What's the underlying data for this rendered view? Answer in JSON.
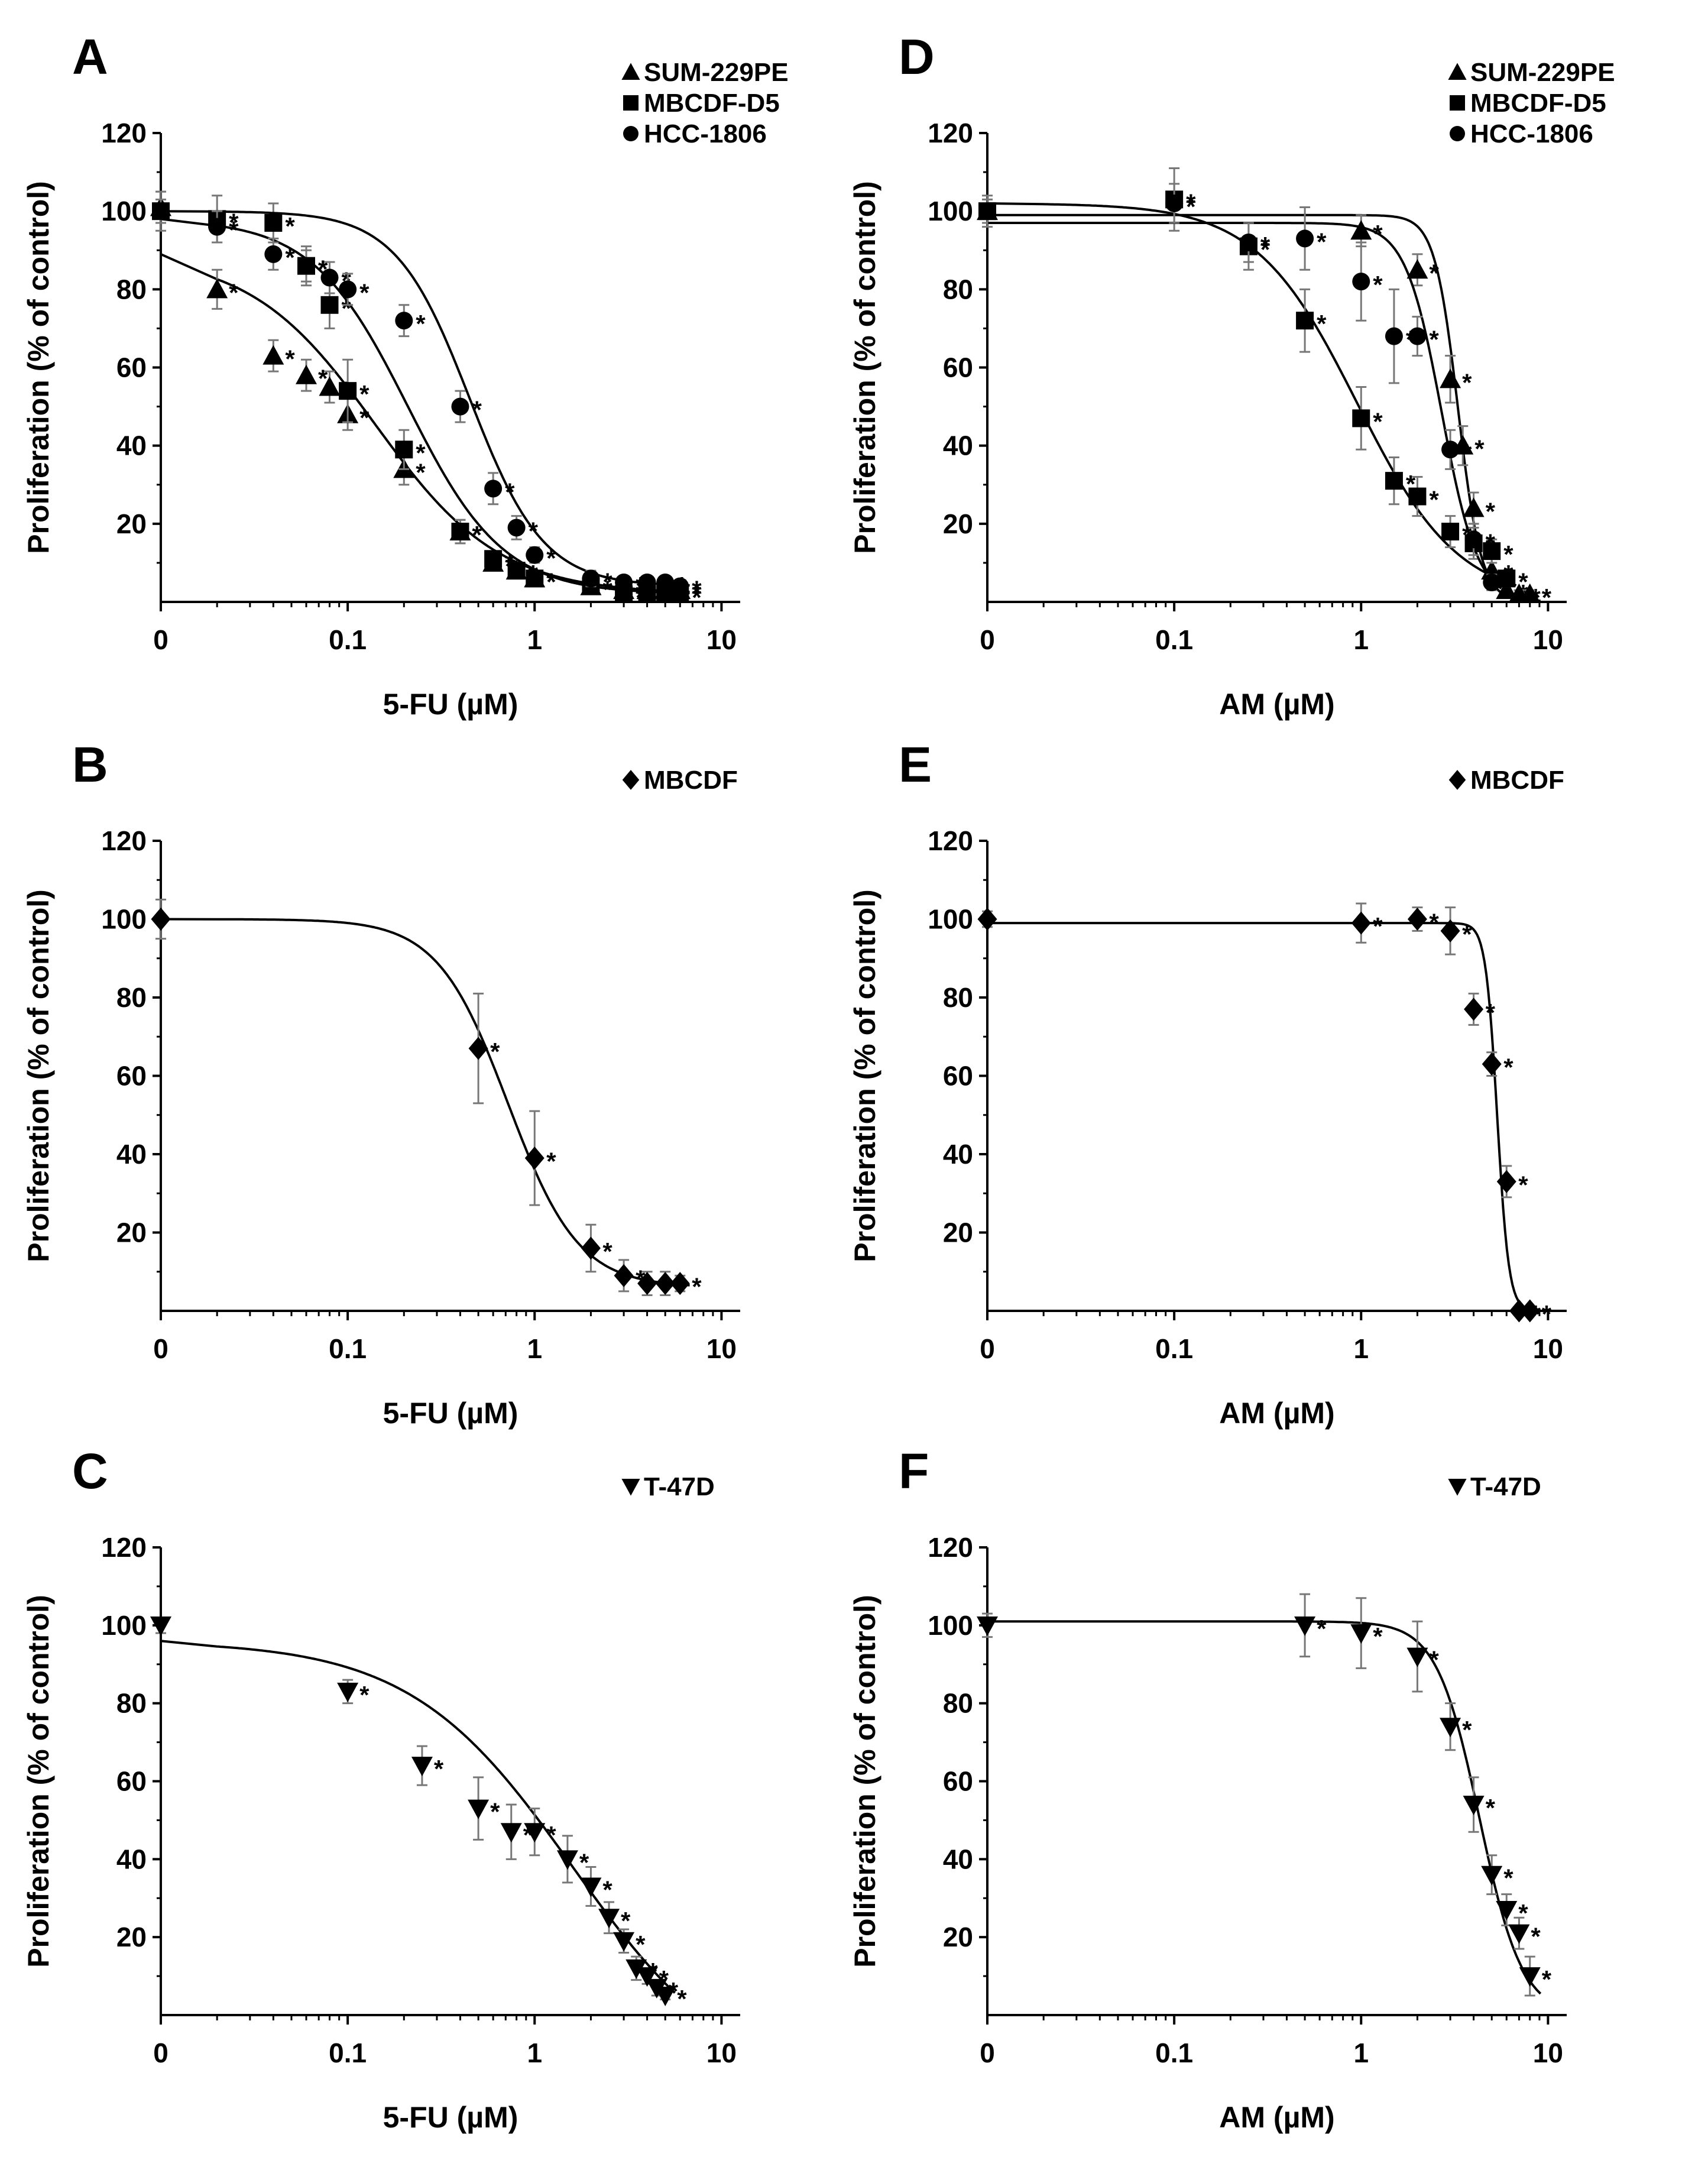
{
  "figure": {
    "panel_letters": [
      "A",
      "B",
      "C",
      "D",
      "E",
      "F"
    ]
  },
  "chart_data": [
    {
      "panel": "A",
      "type": "scatter",
      "xlabel": "5-FU (µM)",
      "ylabel": "Proliferation (% of control)",
      "x_scale": "log",
      "x_ticks": [
        "0",
        "0.1",
        "1",
        "10"
      ],
      "y_ticks": [
        "20",
        "40",
        "60",
        "80",
        "100",
        "120"
      ],
      "ylim": [
        0,
        120
      ],
      "legend": [
        "SUM-229PE",
        "MBCDF-D5",
        "HCC-1806"
      ],
      "series": [
        {
          "name": "SUM-229PE",
          "marker": "triangle-up",
          "x": [
            0,
            0.02,
            0.04,
            0.06,
            0.08,
            0.1,
            0.2,
            0.4,
            0.6,
            0.8,
            1,
            2,
            3,
            4,
            5,
            6
          ],
          "y": [
            101,
            80,
            63,
            58,
            55,
            48,
            34,
            18,
            10,
            8,
            6,
            4,
            3,
            3,
            3,
            3
          ],
          "err": [
            4,
            5,
            4,
            4,
            4,
            4,
            4,
            3,
            2,
            2,
            2,
            1,
            1,
            1,
            1,
            1
          ],
          "fit": {
            "top": 89,
            "bottom": 2,
            "ec50": 0.14,
            "hill": 1.3
          }
        },
        {
          "name": "MBCDF-D5",
          "marker": "square",
          "x": [
            0,
            0.02,
            0.04,
            0.06,
            0.08,
            0.1,
            0.2,
            0.4,
            0.6,
            0.8,
            1,
            2,
            3,
            4,
            5,
            6
          ],
          "y": [
            100,
            98,
            97,
            86,
            76,
            54,
            39,
            18,
            11,
            8,
            6,
            4,
            2,
            2,
            2,
            2
          ],
          "err": [
            5,
            6,
            5,
            5,
            6,
            8,
            5,
            3,
            2,
            2,
            2,
            1,
            1,
            1,
            1,
            1
          ],
          "fit": {
            "top": 98,
            "bottom": 2,
            "ec50": 0.21,
            "hill": 1.7
          }
        },
        {
          "name": "HCC-1806",
          "marker": "circle",
          "x": [
            0,
            0.02,
            0.04,
            0.06,
            0.08,
            0.1,
            0.2,
            0.4,
            0.6,
            0.8,
            1,
            2,
            3,
            4,
            5,
            6
          ],
          "y": [
            100,
            96,
            89,
            86,
            83,
            80,
            72,
            50,
            29,
            19,
            12,
            6,
            5,
            5,
            5,
            4
          ],
          "err": [
            3,
            4,
            4,
            4,
            4,
            4,
            4,
            4,
            4,
            3,
            2,
            2,
            1,
            1,
            1,
            1
          ],
          "fit": {
            "top": 100,
            "bottom": 4,
            "ec50": 0.45,
            "hill": 2.2
          }
        }
      ],
      "significance": [
        "*"
      ]
    },
    {
      "panel": "B",
      "type": "scatter",
      "xlabel": "5-FU (µM)",
      "ylabel": "Proliferation (% of control)",
      "x_scale": "log",
      "x_ticks": [
        "0",
        "0.1",
        "1",
        "10"
      ],
      "y_ticks": [
        "20",
        "40",
        "60",
        "80",
        "100",
        "120"
      ],
      "ylim": [
        0,
        120
      ],
      "legend": [
        "MBCDF"
      ],
      "series": [
        {
          "name": "MBCDF",
          "marker": "diamond",
          "x": [
            0,
            0.5,
            1,
            2,
            3,
            4,
            5,
            6
          ],
          "y": [
            100,
            67,
            39,
            16,
            9,
            7,
            7,
            7
          ],
          "err": [
            5,
            14,
            12,
            6,
            4,
            3,
            3,
            2
          ],
          "fit": {
            "top": 100,
            "bottom": 6,
            "ec50": 0.72,
            "hill": 2.3
          }
        }
      ],
      "significance": [
        "*"
      ]
    },
    {
      "panel": "C",
      "type": "scatter",
      "xlabel": "5-FU (µM)",
      "ylabel": "Proliferation (% of control)",
      "x_scale": "log",
      "x_ticks": [
        "0",
        "0.1",
        "1",
        "10"
      ],
      "y_ticks": [
        "20",
        "40",
        "60",
        "80",
        "100",
        "120"
      ],
      "ylim": [
        0,
        120
      ],
      "legend": [
        "T-47D"
      ],
      "series": [
        {
          "name": "T-47D",
          "marker": "triangle-down",
          "x": [
            0,
            0.1,
            0.25,
            0.5,
            0.75,
            1,
            1.5,
            2,
            2.5,
            3,
            3.5,
            4,
            4.5,
            5
          ],
          "y": [
            100,
            83,
            64,
            53,
            47,
            47,
            40,
            33,
            25,
            19,
            12,
            10,
            7,
            5
          ],
          "err": [
            2,
            3,
            5,
            8,
            7,
            6,
            6,
            5,
            4,
            3,
            3,
            2,
            2,
            1
          ],
          "fit": {
            "top": 96,
            "bottom": -20,
            "ec50": 1.6,
            "hill": 1.0
          }
        }
      ],
      "significance": [
        "*"
      ]
    },
    {
      "panel": "D",
      "type": "scatter",
      "xlabel": "AM (µM)",
      "ylabel": "Proliferation (% of control)",
      "x_scale": "log",
      "x_ticks": [
        "0",
        "0.1",
        "1",
        "10"
      ],
      "y_ticks": [
        "20",
        "40",
        "60",
        "80",
        "100",
        "120"
      ],
      "ylim": [
        0,
        120
      ],
      "legend": [
        "SUM-229PE",
        "MBCDF-D5",
        "HCC-1806"
      ],
      "series": [
        {
          "name": "SUM-229PE",
          "marker": "triangle-up",
          "x": [
            0,
            1,
            2,
            3,
            3.5,
            4,
            5,
            6,
            7,
            8
          ],
          "y": [
            100,
            95,
            85,
            57,
            40,
            24,
            8,
            3,
            2,
            2
          ],
          "err": [
            3,
            4,
            4,
            6,
            5,
            4,
            3,
            2,
            1,
            1
          ],
          "fit": {
            "top": 99,
            "bottom": 0,
            "ec50": 3.3,
            "hill": 7
          }
        },
        {
          "name": "MBCDF-D5",
          "marker": "square",
          "x": [
            0,
            0.1,
            0.25,
            0.5,
            1,
            1.5,
            2,
            3,
            4,
            5,
            6
          ],
          "y": [
            100,
            103,
            91,
            72,
            47,
            31,
            27,
            18,
            15,
            13,
            6
          ],
          "err": [
            3,
            8,
            6,
            8,
            8,
            6,
            5,
            4,
            4,
            3,
            2
          ],
          "fit": {
            "top": 102,
            "bottom": 0,
            "ec50": 0.95,
            "hill": 1.6
          }
        },
        {
          "name": "HCC-1806",
          "marker": "circle",
          "x": [
            0,
            0.1,
            0.25,
            0.5,
            1,
            1.5,
            2,
            3,
            4,
            5
          ],
          "y": [
            100,
            102,
            92,
            93,
            82,
            68,
            68,
            39,
            16,
            5
          ],
          "err": [
            4,
            5,
            5,
            8,
            10,
            12,
            5,
            5,
            4,
            2
          ],
          "fit": {
            "top": 97,
            "bottom": 0,
            "ec50": 2.7,
            "hill": 4.5
          }
        }
      ],
      "significance": [
        "*"
      ]
    },
    {
      "panel": "E",
      "type": "scatter",
      "xlabel": "AM (µM)",
      "ylabel": "Proliferation (% of control)",
      "x_scale": "log",
      "x_ticks": [
        "0",
        "0.1",
        "1",
        "10"
      ],
      "y_ticks": [
        "20",
        "40",
        "60",
        "80",
        "100",
        "120"
      ],
      "ylim": [
        0,
        120
      ],
      "legend": [
        "MBCDF"
      ],
      "series": [
        {
          "name": "MBCDF",
          "marker": "diamond",
          "x": [
            0,
            1,
            2,
            3,
            4,
            5,
            6,
            7,
            8
          ],
          "y": [
            100,
            99,
            100,
            97,
            77,
            63,
            33,
            0,
            0
          ],
          "err": [
            2,
            5,
            3,
            6,
            4,
            3,
            4,
            0,
            0
          ],
          "fit": {
            "top": 99,
            "bottom": 0,
            "ec50": 5.35,
            "hill": 14
          }
        }
      ],
      "significance": [
        "*"
      ]
    },
    {
      "panel": "F",
      "type": "scatter",
      "xlabel": "AM (µM)",
      "ylabel": "Proliferation (% of control)",
      "x_scale": "log",
      "x_ticks": [
        "0",
        "0.1",
        "1",
        "10"
      ],
      "y_ticks": [
        "20",
        "40",
        "60",
        "80",
        "100",
        "120"
      ],
      "ylim": [
        0,
        120
      ],
      "legend": [
        "T-47D"
      ],
      "series": [
        {
          "name": "T-47D",
          "marker": "triangle-down",
          "x": [
            0,
            0.5,
            1,
            2,
            3,
            4,
            5,
            6,
            7,
            8
          ],
          "y": [
            100,
            100,
            98,
            92,
            74,
            54,
            36,
            27,
            21,
            10
          ],
          "err": [
            3,
            8,
            9,
            9,
            6,
            7,
            5,
            4,
            4,
            5
          ],
          "fit": {
            "top": 101,
            "bottom": 0,
            "ec50": 4.3,
            "hill": 3.8
          }
        }
      ],
      "significance": [
        "*"
      ]
    }
  ]
}
